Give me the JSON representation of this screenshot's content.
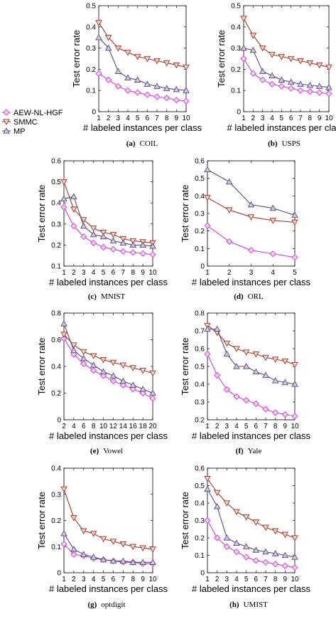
{
  "colors": {
    "AEW-NL-HGF": "#cc44cc",
    "SMMC": "#9b3a2a",
    "MP": "#5a4a78",
    "AEW-NL-HGF_fill": "#f3cdf3",
    "SMMC_fill": "#f0d2c8",
    "MP_fill": "#cfc8e2"
  },
  "legend": {
    "entries": [
      {
        "name": "AEW-NL-HGF",
        "marker": "diamond"
      },
      {
        "name": "SMMC",
        "marker": "triangle-down"
      },
      {
        "name": "MP",
        "marker": "triangle-up"
      }
    ]
  },
  "chart_data": [
    {
      "type": "line",
      "panel": "(a)",
      "caption": "COIL",
      "xlabel": "# labeled instances per class",
      "ylabel": "Test error rate",
      "ylim": [
        0,
        0.5
      ],
      "yticks": [
        "0",
        "0.1",
        "0.2",
        "0.3",
        "0.4",
        "0.5"
      ],
      "xlim": [
        1,
        10
      ],
      "xticks": [
        "1",
        "2",
        "3",
        "4",
        "5",
        "6",
        "7",
        "8",
        "9",
        "10"
      ],
      "x": [
        1,
        2,
        3,
        4,
        5,
        6,
        7,
        8,
        9,
        10
      ],
      "series": [
        {
          "name": "AEW-NL-HGF",
          "values": [
            0.18,
            0.15,
            0.12,
            0.1,
            0.09,
            0.08,
            0.07,
            0.065,
            0.055,
            0.05
          ]
        },
        {
          "name": "SMMC",
          "values": [
            0.42,
            0.35,
            0.3,
            0.28,
            0.26,
            0.25,
            0.24,
            0.23,
            0.22,
            0.21
          ]
        },
        {
          "name": "MP",
          "values": [
            0.35,
            0.3,
            0.19,
            0.16,
            0.15,
            0.13,
            0.12,
            0.11,
            0.105,
            0.1
          ]
        }
      ]
    },
    {
      "type": "line",
      "panel": "(b)",
      "caption": "USPS",
      "xlabel": "# labeled instances per class",
      "ylabel": "Test error rate",
      "ylim": [
        0,
        0.5
      ],
      "yticks": [
        "0",
        "0.1",
        "0.2",
        "0.3",
        "0.4",
        "0.5"
      ],
      "xlim": [
        1,
        10
      ],
      "xticks": [
        "1",
        "2",
        "3",
        "4",
        "5",
        "6",
        "7",
        "8",
        "9",
        "10"
      ],
      "x": [
        1,
        2,
        3,
        4,
        5,
        6,
        7,
        8,
        9,
        10
      ],
      "series": [
        {
          "name": "AEW-NL-HGF",
          "values": [
            0.25,
            0.18,
            0.15,
            0.13,
            0.12,
            0.11,
            0.1,
            0.095,
            0.09,
            0.085
          ]
        },
        {
          "name": "SMMC",
          "values": [
            0.44,
            0.36,
            0.3,
            0.27,
            0.26,
            0.25,
            0.24,
            0.23,
            0.22,
            0.21
          ]
        },
        {
          "name": "MP",
          "values": [
            0.3,
            0.29,
            0.19,
            0.17,
            0.15,
            0.14,
            0.13,
            0.125,
            0.12,
            0.115
          ]
        }
      ]
    },
    {
      "type": "line",
      "panel": "(c)",
      "caption": "MNIST",
      "xlabel": "# labeled instances per class",
      "ylabel": "Test error rate",
      "ylim": [
        0.1,
        0.6
      ],
      "yticks": [
        "0.1",
        "0.2",
        "0.3",
        "0.4",
        "0.5",
        "0.6"
      ],
      "xlim": [
        1,
        10
      ],
      "xticks": [
        "1",
        "2",
        "3",
        "4",
        "5",
        "6",
        "7",
        "8",
        "9",
        "10"
      ],
      "x": [
        1,
        2,
        3,
        4,
        5,
        6,
        7,
        8,
        9,
        10
      ],
      "series": [
        {
          "name": "AEW-NL-HGF",
          "values": [
            0.38,
            0.29,
            0.24,
            0.21,
            0.19,
            0.18,
            0.17,
            0.165,
            0.16,
            0.155
          ]
        },
        {
          "name": "SMMC",
          "values": [
            0.5,
            0.37,
            0.32,
            0.28,
            0.26,
            0.25,
            0.23,
            0.22,
            0.215,
            0.21
          ]
        },
        {
          "name": "MP",
          "values": [
            0.42,
            0.43,
            0.29,
            0.25,
            0.24,
            0.22,
            0.21,
            0.2,
            0.2,
            0.195
          ]
        }
      ]
    },
    {
      "type": "line",
      "panel": "(d)",
      "caption": "ORL",
      "xlabel": "# labeled instances per class",
      "ylabel": "Test error rate",
      "ylim": [
        0,
        0.6
      ],
      "yticks": [
        "0",
        "0.1",
        "0.2",
        "0.3",
        "0.4",
        "0.5",
        "0.6"
      ],
      "xlim": [
        1,
        5
      ],
      "xticks": [
        "1",
        "2",
        "3",
        "4",
        "5"
      ],
      "x": [
        1,
        2,
        3,
        4,
        5
      ],
      "series": [
        {
          "name": "AEW-NL-HGF",
          "values": [
            0.23,
            0.14,
            0.09,
            0.07,
            0.05
          ]
        },
        {
          "name": "SMMC",
          "values": [
            0.39,
            0.32,
            0.28,
            0.26,
            0.25
          ]
        },
        {
          "name": "MP",
          "values": [
            0.55,
            0.48,
            0.35,
            0.33,
            0.29
          ]
        }
      ]
    },
    {
      "type": "line",
      "panel": "(e)",
      "caption": "Vowel",
      "xlabel": "# labeled instances per class",
      "ylabel": "Test error rate",
      "ylim": [
        0,
        0.8
      ],
      "yticks": [
        "0",
        "0.2",
        "0.4",
        "0.6",
        "0.8"
      ],
      "xlim": [
        2,
        20
      ],
      "xticks": [
        "2",
        "4",
        "6",
        "8",
        "10",
        "12",
        "14",
        "16",
        "18",
        "20"
      ],
      "x": [
        2,
        4,
        6,
        8,
        10,
        12,
        14,
        16,
        18,
        20
      ],
      "series": [
        {
          "name": "AEW-NL-HGF",
          "values": [
            0.61,
            0.49,
            0.42,
            0.37,
            0.33,
            0.29,
            0.26,
            0.23,
            0.2,
            0.16
          ]
        },
        {
          "name": "SMMC",
          "values": [
            0.64,
            0.56,
            0.51,
            0.48,
            0.45,
            0.43,
            0.41,
            0.39,
            0.37,
            0.35
          ]
        },
        {
          "name": "MP",
          "values": [
            0.72,
            0.52,
            0.46,
            0.41,
            0.36,
            0.33,
            0.29,
            0.26,
            0.23,
            0.2
          ]
        }
      ]
    },
    {
      "type": "line",
      "panel": "(f)",
      "caption": "Yale",
      "xlabel": "# labeled instances per class",
      "ylabel": "Test error rate",
      "ylim": [
        0.2,
        0.8
      ],
      "yticks": [
        "0.2",
        "0.3",
        "0.4",
        "0.5",
        "0.6",
        "0.7",
        "0.8"
      ],
      "xlim": [
        1,
        10
      ],
      "xticks": [
        "1",
        "2",
        "3",
        "4",
        "5",
        "6",
        "7",
        "8",
        "9",
        "10"
      ],
      "x": [
        1,
        2,
        3,
        4,
        5,
        6,
        7,
        8,
        9,
        10
      ],
      "series": [
        {
          "name": "AEW-NL-HGF",
          "values": [
            0.57,
            0.45,
            0.37,
            0.33,
            0.31,
            0.29,
            0.26,
            0.24,
            0.23,
            0.22
          ]
        },
        {
          "name": "SMMC",
          "values": [
            0.73,
            0.69,
            0.63,
            0.6,
            0.58,
            0.57,
            0.55,
            0.54,
            0.53,
            0.51
          ]
        },
        {
          "name": "MP",
          "values": [
            0.71,
            0.71,
            0.57,
            0.5,
            0.5,
            0.47,
            0.45,
            0.42,
            0.41,
            0.4
          ]
        }
      ]
    },
    {
      "type": "line",
      "panel": "(g)",
      "caption": "optdigit",
      "xlabel": "# labeled instances per class",
      "ylabel": "Test error rate",
      "ylim": [
        0,
        0.4
      ],
      "yticks": [
        "0",
        "0.1",
        "0.2",
        "0.3",
        "0.4"
      ],
      "xlim": [
        1,
        10
      ],
      "xticks": [
        "1",
        "2",
        "3",
        "4",
        "5",
        "6",
        "7",
        "8",
        "9",
        "10"
      ],
      "x": [
        1,
        2,
        3,
        4,
        5,
        6,
        7,
        8,
        9,
        10
      ],
      "series": [
        {
          "name": "AEW-NL-HGF",
          "values": [
            0.11,
            0.07,
            0.065,
            0.055,
            0.05,
            0.045,
            0.04,
            0.04,
            0.035,
            0.035
          ]
        },
        {
          "name": "SMMC",
          "values": [
            0.32,
            0.21,
            0.16,
            0.15,
            0.13,
            0.12,
            0.11,
            0.1,
            0.095,
            0.09
          ]
        },
        {
          "name": "MP",
          "values": [
            0.15,
            0.09,
            0.07,
            0.06,
            0.05,
            0.045,
            0.045,
            0.04,
            0.04,
            0.04
          ]
        }
      ]
    },
    {
      "type": "line",
      "panel": "(h)",
      "caption": "UMIST",
      "xlabel": "# labeled instances per class",
      "ylabel": "Test error rate",
      "ylim": [
        0,
        0.6
      ],
      "yticks": [
        "0",
        "0.1",
        "0.2",
        "0.3",
        "0.4",
        "0.5",
        "0.6"
      ],
      "xlim": [
        1,
        10
      ],
      "xticks": [
        "1",
        "2",
        "3",
        "4",
        "5",
        "6",
        "7",
        "8",
        "9",
        "10"
      ],
      "x": [
        1,
        2,
        3,
        4,
        5,
        6,
        7,
        8,
        9,
        10
      ],
      "series": [
        {
          "name": "AEW-NL-HGF",
          "values": [
            0.3,
            0.2,
            0.15,
            0.12,
            0.09,
            0.07,
            0.06,
            0.05,
            0.04,
            0.03
          ]
        },
        {
          "name": "SMMC",
          "values": [
            0.54,
            0.46,
            0.4,
            0.35,
            0.32,
            0.29,
            0.26,
            0.24,
            0.22,
            0.2
          ]
        },
        {
          "name": "MP",
          "values": [
            0.48,
            0.38,
            0.2,
            0.17,
            0.15,
            0.13,
            0.12,
            0.11,
            0.1,
            0.09
          ]
        }
      ]
    }
  ]
}
